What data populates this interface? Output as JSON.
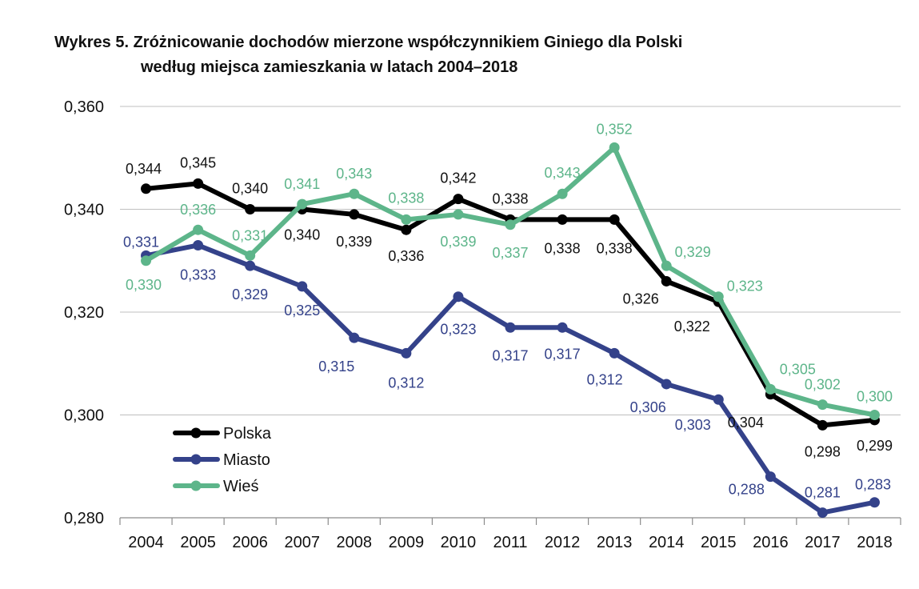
{
  "chart_data": {
    "type": "line",
    "title_line1": "Wykres 5. Zróżnicowanie dochodów mierzone współczynnikiem Giniego dla Polski",
    "title_line2": "według miejsca zamieszkania w latach 2004–2018",
    "xlabel": "",
    "ylabel": "",
    "categories": [
      "2004",
      "2005",
      "2006",
      "2007",
      "2008",
      "2009",
      "2010",
      "2011",
      "2012",
      "2013",
      "2014",
      "2015",
      "2016",
      "2017",
      "2018"
    ],
    "ylim": [
      0.28,
      0.36
    ],
    "yticks": [
      "0,360",
      "0,340",
      "0,320",
      "0,300",
      "0,280"
    ],
    "ytick_values": [
      0.36,
      0.34,
      0.32,
      0.3,
      0.28
    ],
    "grid": true,
    "legend_position": "bottom-left",
    "series": [
      {
        "name": "Polska",
        "color": "#000000",
        "values": [
          0.344,
          0.345,
          0.34,
          0.34,
          0.339,
          0.336,
          0.342,
          0.338,
          0.338,
          0.338,
          0.326,
          0.322,
          0.304,
          0.298,
          0.299
        ],
        "labels": [
          "0,344",
          "0,345",
          "0,340",
          "0,340",
          "0,339",
          "0,336",
          "0,342",
          "0,338",
          "0,338",
          "0,338",
          "0,326",
          "0,322",
          "0,304",
          "0,298",
          "0,299"
        ]
      },
      {
        "name": "Miasto",
        "color": "#34428a",
        "values": [
          0.331,
          0.333,
          0.329,
          0.325,
          0.315,
          0.312,
          0.323,
          0.317,
          0.317,
          0.312,
          0.306,
          0.303,
          0.288,
          0.281,
          0.283
        ],
        "labels": [
          "0,331",
          "0,333",
          "0,329",
          "0,325",
          "0,315",
          "0,312",
          "0,323",
          "0,317",
          "0,317",
          "0,312",
          "0,306",
          "0,303",
          "0,288",
          "0,281",
          "0,283"
        ]
      },
      {
        "name": "Wieś",
        "color": "#5db58a",
        "values": [
          0.33,
          0.336,
          0.331,
          0.341,
          0.343,
          0.338,
          0.339,
          0.337,
          0.343,
          0.352,
          0.329,
          0.323,
          0.305,
          0.302,
          0.3
        ],
        "labels": [
          "0,330",
          "0,336",
          "0,331",
          "0,341",
          "0,343",
          "0,338",
          "0,339",
          "0,337",
          "0,343",
          "0,352",
          "0,329",
          "0,323",
          "0,305",
          "0,302",
          "0,300"
        ]
      }
    ]
  }
}
